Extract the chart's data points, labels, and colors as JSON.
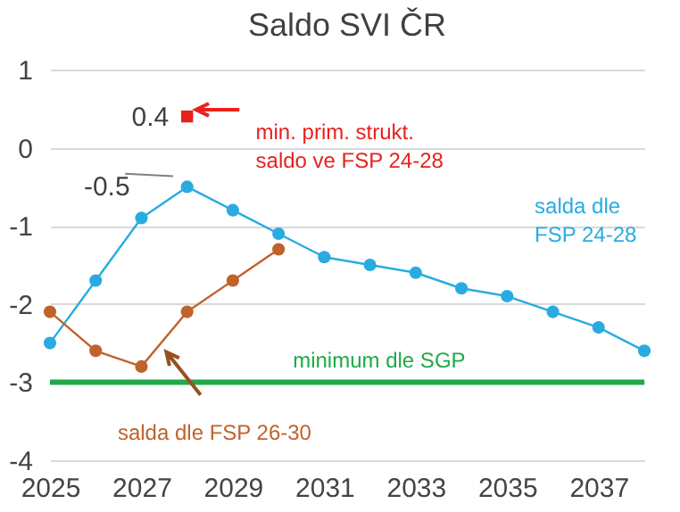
{
  "chart_data": {
    "type": "line",
    "title": "Saldo SVI ČR",
    "x": [
      2025,
      2026,
      2027,
      2028,
      2029,
      2030,
      2031,
      2032,
      2033,
      2034,
      2035,
      2036,
      2037,
      2038
    ],
    "series": [
      {
        "name": "salda dle FSP 24-28",
        "color": "#29abe2",
        "values": [
          -2.5,
          -1.7,
          -0.9,
          -0.5,
          -0.8,
          -1.1,
          -1.4,
          -1.5,
          -1.6,
          -1.8,
          -1.9,
          -2.1,
          -2.3,
          -2.6
        ],
        "value_labels": [
          null,
          null,
          null,
          "-0.5",
          null,
          null,
          null,
          null,
          null,
          null,
          null,
          null,
          null,
          null
        ]
      },
      {
        "name": "salda dle FSP 26-30",
        "color": "#c0622b",
        "x": [
          2025,
          2026,
          2027,
          2028,
          2029,
          2030
        ],
        "values": [
          -2.1,
          -2.6,
          -2.8,
          -2.1,
          -1.7,
          -1.3
        ]
      },
      {
        "name": "min. prim. strukt. saldo ve FSP 24-28",
        "type": "scatter",
        "marker": "square",
        "color": "#e8211d",
        "x": [
          2028
        ],
        "values": [
          0.4
        ],
        "value_labels": [
          "0.4"
        ]
      }
    ],
    "marker": "circle",
    "xlim": [
      2025,
      2038
    ],
    "xticks": [
      2025,
      2027,
      2029,
      2031,
      2033,
      2035,
      2037
    ],
    "ylim": [
      -4,
      1
    ],
    "yticks": [
      -4,
      -3,
      -2,
      -1,
      0,
      1
    ],
    "grid": "y",
    "ref_lines": [
      {
        "axis": "y",
        "value": -3,
        "label": "minimum dle SGP",
        "color": "#1faa47"
      }
    ]
  }
}
